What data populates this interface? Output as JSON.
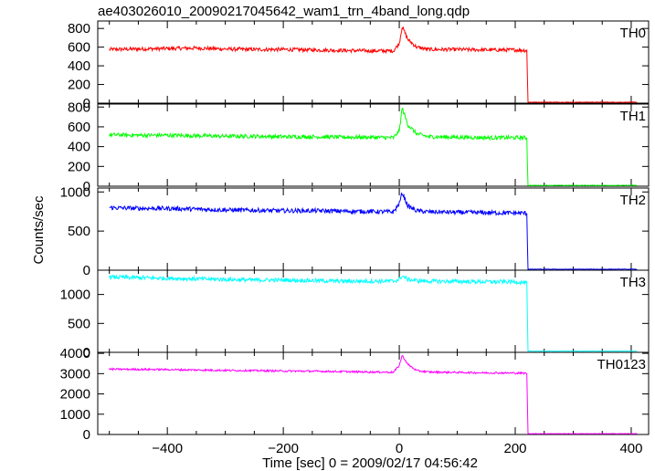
{
  "chart_data": {
    "type": "line",
    "title": "ae403026010_20090217045642_wam1_trn_4band_long.qdp",
    "xlabel": "Time [sec] 0 = 2009/02/17 04:56:42",
    "ylabel": "Counts/sec",
    "xlim": [
      -520,
      430
    ],
    "x_ticks": [
      -400,
      -200,
      0,
      200,
      400
    ],
    "x_tick_labels": [
      "−400",
      "−200",
      "0",
      "200",
      "400"
    ],
    "grid": false,
    "panels": [
      {
        "label": "TH0",
        "color": "#ff0000",
        "ylim": [
          0,
          880
        ],
        "y_ticks": [
          0,
          200,
          400,
          600,
          800
        ],
        "y_tick_labels": [
          "0",
          "200",
          "400",
          "600",
          "800"
        ],
        "series": {
          "x": [
            -500,
            -450,
            -400,
            -350,
            -300,
            -250,
            -200,
            -150,
            -100,
            -50,
            -10,
            0,
            5,
            15,
            30,
            50,
            100,
            150,
            200,
            220,
            222,
            250,
            300,
            350,
            400,
            410
          ],
          "y": [
            575,
            580,
            585,
            590,
            580,
            575,
            575,
            570,
            565,
            560,
            560,
            640,
            820,
            680,
            600,
            575,
            575,
            570,
            570,
            565,
            10,
            10,
            10,
            10,
            10,
            10
          ],
          "noise": 20
        }
      },
      {
        "label": "TH1",
        "color": "#00ff00",
        "ylim": [
          0,
          830
        ],
        "y_ticks": [
          0,
          200,
          400,
          600,
          800
        ],
        "y_tick_labels": [
          "0",
          "200",
          "400",
          "600",
          "800"
        ],
        "series": {
          "x": [
            -500,
            -450,
            -400,
            -350,
            -300,
            -250,
            -200,
            -150,
            -100,
            -50,
            -10,
            0,
            5,
            15,
            30,
            50,
            100,
            150,
            200,
            220,
            222,
            250,
            300,
            350,
            400,
            410
          ],
          "y": [
            520,
            515,
            515,
            510,
            505,
            505,
            500,
            500,
            495,
            495,
            490,
            560,
            790,
            620,
            530,
            500,
            495,
            490,
            490,
            490,
            8,
            8,
            8,
            8,
            8,
            8
          ],
          "noise": 20
        }
      },
      {
        "label": "TH2",
        "color": "#0000ff",
        "ylim": [
          0,
          1050
        ],
        "y_ticks": [
          0,
          500,
          1000
        ],
        "y_tick_labels": [
          "0",
          "500",
          "1000"
        ],
        "series": {
          "x": [
            -500,
            -450,
            -400,
            -350,
            -300,
            -250,
            -200,
            -150,
            -100,
            -50,
            -10,
            0,
            5,
            15,
            30,
            50,
            100,
            150,
            200,
            220,
            222,
            250,
            300,
            350,
            400,
            410
          ],
          "y": [
            800,
            790,
            790,
            780,
            770,
            765,
            760,
            760,
            755,
            750,
            745,
            850,
            990,
            820,
            760,
            745,
            740,
            735,
            730,
            730,
            12,
            12,
            12,
            12,
            12,
            12
          ],
          "noise": 28
        }
      },
      {
        "label": "TH3",
        "color": "#00ffff",
        "ylim": [
          0,
          1420
        ],
        "y_ticks": [
          0,
          500,
          1000
        ],
        "y_tick_labels": [
          "0",
          "500",
          "1000"
        ],
        "series": {
          "x": [
            -500,
            -450,
            -400,
            -350,
            -300,
            -250,
            -200,
            -150,
            -100,
            -50,
            -10,
            0,
            5,
            15,
            30,
            50,
            100,
            150,
            200,
            220,
            222,
            250,
            300,
            350,
            400,
            410
          ],
          "y": [
            1300,
            1290,
            1280,
            1270,
            1260,
            1250,
            1250,
            1240,
            1230,
            1230,
            1230,
            1260,
            1320,
            1260,
            1240,
            1230,
            1225,
            1220,
            1220,
            1200,
            20,
            20,
            20,
            20,
            20,
            20
          ],
          "noise": 35
        }
      },
      {
        "label": "TH0123",
        "color": "#ff00ff",
        "ylim": [
          0,
          4050
        ],
        "y_ticks": [
          0,
          1000,
          2000,
          3000,
          4000
        ],
        "y_tick_labels": [
          "0",
          "1000",
          "2000",
          "3000",
          "4000"
        ],
        "series": {
          "x": [
            -500,
            -450,
            -400,
            -350,
            -300,
            -250,
            -200,
            -150,
            -100,
            -50,
            -10,
            0,
            5,
            15,
            30,
            50,
            100,
            150,
            200,
            220,
            222,
            250,
            300,
            350,
            400,
            410
          ],
          "y": [
            3220,
            3210,
            3200,
            3180,
            3160,
            3150,
            3130,
            3120,
            3100,
            3080,
            3070,
            3400,
            3900,
            3450,
            3150,
            3080,
            3060,
            3040,
            3030,
            3020,
            40,
            40,
            40,
            40,
            40,
            40
          ],
          "noise": 45
        }
      }
    ]
  }
}
